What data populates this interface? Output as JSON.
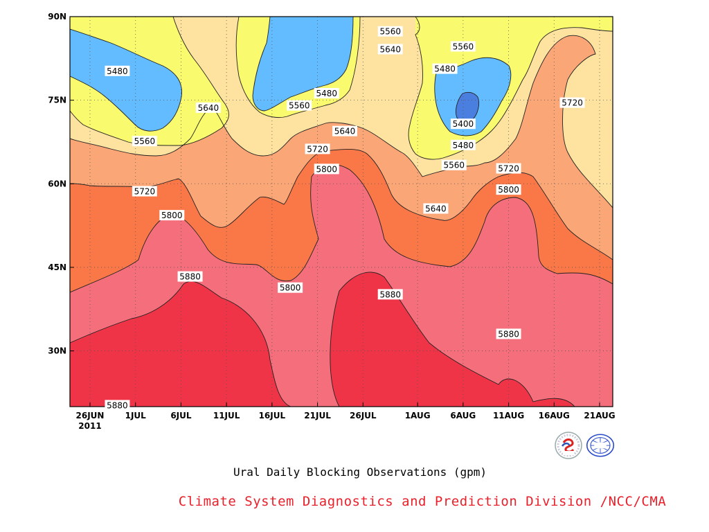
{
  "chart_data": {
    "type": "heatmap",
    "subtype": "filled-contour time-latitude (Hovmoller)",
    "title": "Ural Daily Blocking Observations (gpm)",
    "credit": "Climate System Diagnostics and Prediction Division /NCC/CMA",
    "x_ticks": [
      "26JUN",
      "1JUL",
      "6JUL",
      "11JUL",
      "16JUL",
      "21JUL",
      "26JUL",
      "1AUG",
      "6AUG",
      "11AUG",
      "16AUG",
      "21AUG"
    ],
    "x_year_label": "2011",
    "y_ticks": [
      "30N",
      "45N",
      "60N",
      "75N",
      "90N"
    ],
    "ylim": [
      "20N",
      "90N"
    ],
    "grid": "dotted",
    "contour_interval": 80,
    "contour_levels": [
      5400,
      5480,
      5560,
      5640,
      5720,
      5800,
      5880
    ],
    "colors": {
      "below_5400": "#4a7fe0",
      "5400_5480": "#63bcff",
      "5480_5560": "#fafa6e",
      "5560_5640": "#fde2a0",
      "5640_5720": "#fba676",
      "5720_5800": "#fa7848",
      "5800_5880": "#f56e7b",
      "above_5880": "#f03448"
    },
    "contour_labels": [
      {
        "text": "5480",
        "date": "29JUN",
        "lat": 80.2
      },
      {
        "text": "5640",
        "date": "9JUL",
        "lat": 73.6
      },
      {
        "text": "5560",
        "date": "2JUL",
        "lat": 67.6
      },
      {
        "text": "5720",
        "date": "2JUL",
        "lat": 58.6
      },
      {
        "text": "5800",
        "date": "5JUL",
        "lat": 54.3
      },
      {
        "text": "5880",
        "date": "7JUL",
        "lat": 43.3
      },
      {
        "text": "5880",
        "date": "29JUN",
        "lat": 20.2
      },
      {
        "text": "5480",
        "date": "22JUL",
        "lat": 76.2
      },
      {
        "text": "5560",
        "date": "19JUL",
        "lat": 74.0
      },
      {
        "text": "5640",
        "date": "24JUL",
        "lat": 69.4
      },
      {
        "text": "5720",
        "date": "21JUL",
        "lat": 66.2
      },
      {
        "text": "5800",
        "date": "22JUL",
        "lat": 62.6
      },
      {
        "text": "5800",
        "date": "18JUL",
        "lat": 41.3
      },
      {
        "text": "5560",
        "date": "29JUL",
        "lat": 87.3
      },
      {
        "text": "5640",
        "date": "29JUL",
        "lat": 84.1
      },
      {
        "text": "5880",
        "date": "29JUL",
        "lat": 40.1
      },
      {
        "text": "5640",
        "date": "3AUG",
        "lat": 55.5
      },
      {
        "text": "5480",
        "date": "4AUG",
        "lat": 80.6
      },
      {
        "text": "5560",
        "date": "6AUG",
        "lat": 84.6
      },
      {
        "text": "5400",
        "date": "6AUG",
        "lat": 70.7
      },
      {
        "text": "5480",
        "date": "6AUG",
        "lat": 66.9
      },
      {
        "text": "5560",
        "date": "5AUG",
        "lat": 63.3
      },
      {
        "text": "5720",
        "date": "11AUG",
        "lat": 62.7
      },
      {
        "text": "5800",
        "date": "11AUG",
        "lat": 58.9
      },
      {
        "text": "5880",
        "date": "11AUG",
        "lat": 33.0
      },
      {
        "text": "5720",
        "date": "18AUG",
        "lat": 74.5
      }
    ]
  }
}
